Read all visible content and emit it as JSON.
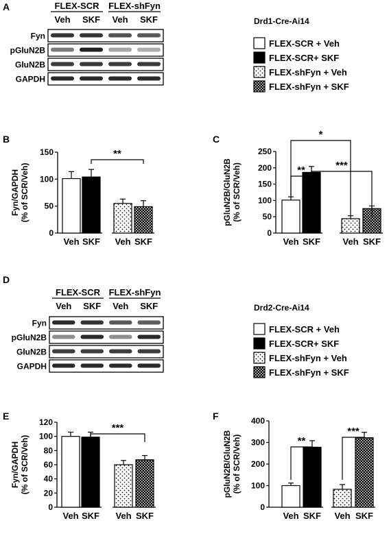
{
  "panel_letters": [
    "A",
    "B",
    "C",
    "D",
    "E",
    "F"
  ],
  "blots": [
    {
      "group_labels": [
        "FLEX-SCR",
        "FLEX-shFyn"
      ],
      "lane_labels": [
        "Veh",
        "SKF",
        "Veh",
        "SKF"
      ],
      "rows": [
        {
          "name": "Fyn",
          "intensity": [
            0.9,
            0.9,
            0.75,
            0.72
          ]
        },
        {
          "name": "pGluN2B",
          "intensity": [
            0.55,
            1.0,
            0.35,
            0.3
          ]
        },
        {
          "name": "GluN2B",
          "intensity": [
            0.85,
            0.88,
            0.85,
            0.87
          ]
        },
        {
          "name": "GAPDH",
          "intensity": [
            0.95,
            0.95,
            0.95,
            0.95
          ]
        }
      ],
      "legend_title": "Drd1-Cre-Ai14"
    },
    {
      "group_labels": [
        "FLEX-SCR",
        "FLEX-shFyn"
      ],
      "lane_labels": [
        "Veh",
        "SKF",
        "Veh",
        "SKF"
      ],
      "rows": [
        {
          "name": "Fyn",
          "intensity": [
            0.95,
            0.9,
            0.72,
            0.7
          ]
        },
        {
          "name": "pGluN2B",
          "intensity": [
            0.45,
            0.95,
            0.45,
            0.95
          ]
        },
        {
          "name": "GluN2B",
          "intensity": [
            0.85,
            0.85,
            0.85,
            0.85
          ]
        },
        {
          "name": "GAPDH",
          "intensity": [
            0.95,
            0.95,
            0.95,
            0.95
          ]
        }
      ],
      "legend_title": "Drd2-Cre-Ai14"
    }
  ],
  "legend_entries": [
    {
      "label": "FLEX-SCR + Veh",
      "pattern": "open"
    },
    {
      "label": "FLEX-SCR+ SKF",
      "pattern": "solid"
    },
    {
      "label": "FLEX-shFyn + Veh",
      "pattern": "dots"
    },
    {
      "label": "FLEX-shFyn + SKF",
      "pattern": "checker"
    }
  ],
  "chart_data": [
    {
      "panel": "B",
      "type": "bar",
      "ylabel": "Fyn/GAPDH (% of SCR/Veh)",
      "categories": [
        "Veh",
        "SKF",
        "Veh",
        "SKF"
      ],
      "values": [
        101,
        104,
        55,
        49
      ],
      "errors": [
        13,
        14,
        8,
        11
      ],
      "patterns": [
        "open",
        "solid",
        "dots",
        "checker"
      ],
      "ylim": [
        0,
        150
      ],
      "yticks": [
        "0",
        "50",
        "100",
        "150"
      ],
      "significance": [
        {
          "from": 1,
          "to": 3,
          "label": "**"
        }
      ]
    },
    {
      "panel": "C",
      "type": "bar",
      "ylabel": "pGluN2B/GluN2B (% of SCR/Veh)",
      "categories": [
        "Veh",
        "SKF",
        "Veh",
        "SKF"
      ],
      "values": [
        101,
        186,
        44,
        75
      ],
      "errors": [
        10,
        18,
        9,
        8
      ],
      "patterns": [
        "open",
        "solid",
        "dots",
        "checker"
      ],
      "ylim": [
        0,
        250
      ],
      "yticks": [
        "0",
        "50",
        "100",
        "150",
        "200",
        "250"
      ],
      "significance": [
        {
          "from": 0,
          "to": 1,
          "label": "**"
        },
        {
          "from": 1,
          "to": 3,
          "label": "***"
        },
        {
          "from": 0,
          "to": 2,
          "label": "*"
        }
      ]
    },
    {
      "panel": "E",
      "type": "bar",
      "ylabel": "Fyn/GAPDH (% of SCR/Veh)",
      "categories": [
        "Veh",
        "SKF",
        "Veh",
        "SKF"
      ],
      "values": [
        100,
        99,
        60,
        67
      ],
      "errors": [
        6,
        7,
        6,
        6
      ],
      "patterns": [
        "open",
        "solid",
        "dots",
        "checker"
      ],
      "ylim": [
        0,
        120
      ],
      "yticks": [
        "0",
        "20",
        "40",
        "60",
        "80",
        "100",
        "120"
      ],
      "significance": [
        {
          "from": 1,
          "to": 3,
          "label": "***"
        }
      ]
    },
    {
      "panel": "F",
      "type": "bar",
      "ylabel": "pGluN2B/GluN2B (% of SCR/Veh)",
      "categories": [
        "Veh",
        "SKF",
        "Veh",
        "SKF"
      ],
      "values": [
        100,
        278,
        83,
        322
      ],
      "errors": [
        12,
        30,
        22,
        25
      ],
      "patterns": [
        "open",
        "solid",
        "dots",
        "checker"
      ],
      "ylim": [
        0,
        400
      ],
      "yticks": [
        "0",
        "100",
        "200",
        "300",
        "400"
      ],
      "significance": [
        {
          "from": 0,
          "to": 1,
          "label": "**"
        },
        {
          "from": 2,
          "to": 3,
          "label": "***"
        }
      ]
    }
  ]
}
